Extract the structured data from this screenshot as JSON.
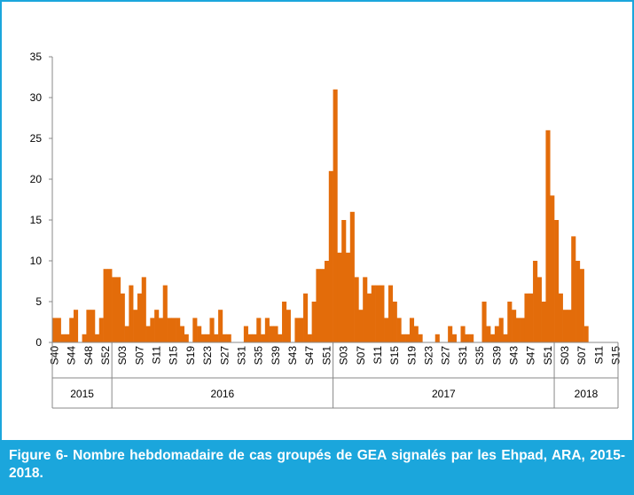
{
  "chart_data": {
    "type": "bar",
    "caption": "Figure 6-  Nombre hebdomadaire de cas groupés de GEA signalés par les Ehpad, ARA, 2015-2018.",
    "color": "#e36c0a",
    "ylim": [
      0,
      35
    ],
    "yticks": [
      0,
      5,
      10,
      15,
      20,
      25,
      30,
      35
    ],
    "categories": [
      "S40",
      null,
      null,
      null,
      "S44",
      null,
      null,
      null,
      "S48",
      null,
      null,
      null,
      "S52",
      null,
      null,
      null,
      "S03",
      null,
      null,
      null,
      "S07",
      null,
      null,
      null,
      "S11",
      null,
      null,
      null,
      "S15",
      null,
      null,
      null,
      "S19",
      null,
      null,
      null,
      "S23",
      null,
      null,
      null,
      "S27",
      null,
      null,
      null,
      "S31",
      null,
      null,
      null,
      "S35",
      null,
      null,
      null,
      "S39",
      null,
      null,
      null,
      "S43",
      null,
      null,
      null,
      "S47",
      null,
      null,
      null,
      "S51",
      null,
      null,
      null,
      "S03",
      null,
      null,
      null,
      "S07",
      null,
      null,
      null,
      "S11",
      null,
      null,
      null,
      "S15",
      null,
      null,
      null,
      "S19",
      null,
      null,
      null,
      "S23",
      null,
      null,
      null,
      "S27",
      null,
      null,
      null,
      "S31",
      null,
      null,
      null,
      "S35",
      null,
      null,
      null,
      "S39",
      null,
      null,
      null,
      "S43",
      null,
      null,
      null,
      "S47",
      null,
      null,
      null,
      "S51",
      null,
      null,
      null,
      "S03",
      null,
      null,
      null,
      "S07",
      null,
      null,
      null,
      "S11",
      null,
      null,
      null,
      "S15"
    ],
    "groups": [
      "2015",
      "2016",
      "2017",
      "2018"
    ],
    "values": [
      3,
      3,
      1,
      1,
      3,
      4,
      0,
      1,
      4,
      4,
      1,
      3,
      9,
      9,
      8,
      8,
      6,
      2,
      7,
      4,
      6,
      8,
      2,
      3,
      4,
      3,
      7,
      3,
      3,
      3,
      2,
      1,
      0,
      3,
      2,
      1,
      1,
      3,
      1,
      4,
      1,
      1,
      0,
      0,
      0,
      2,
      1,
      1,
      3,
      1,
      3,
      2,
      2,
      1,
      5,
      4,
      0,
      3,
      3,
      6,
      1,
      5,
      9,
      9,
      10,
      21,
      31,
      11,
      15,
      11,
      16,
      8,
      4,
      8,
      6,
      7,
      7,
      7,
      3,
      7,
      5,
      3,
      1,
      1,
      3,
      2,
      1,
      0,
      0,
      0,
      1,
      0,
      0,
      2,
      1,
      0,
      2,
      1,
      1,
      0,
      0,
      5,
      2,
      1,
      2,
      3,
      1,
      5,
      4,
      3,
      3,
      6,
      6,
      10,
      8,
      5,
      26,
      18,
      15,
      6,
      4,
      4,
      13,
      10,
      9,
      2,
      0,
      0,
      0,
      0,
      0,
      0,
      0
    ]
  }
}
